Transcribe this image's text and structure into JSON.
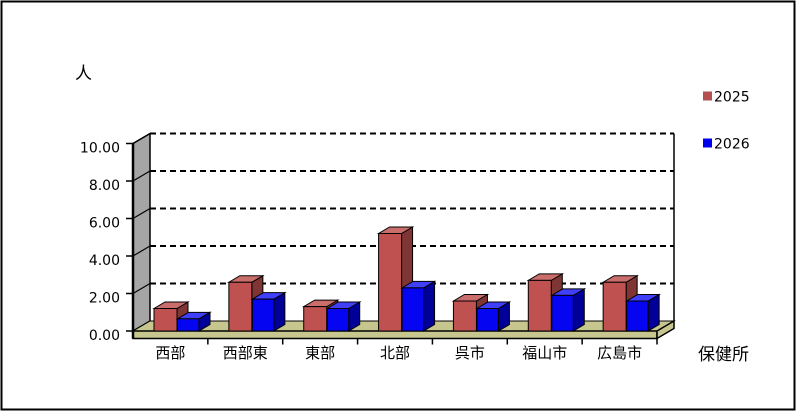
{
  "chart_title": "",
  "frame": {
    "background": "#ffffff",
    "border_color": "#000000"
  },
  "chart_data": {
    "type": "bar",
    "style": "3d-column",
    "title": "",
    "xlabel": "保健所",
    "ylabel": "人",
    "categories": [
      "西部",
      "西部東",
      "東部",
      "北部",
      "呉市",
      "福山市",
      "広島市"
    ],
    "series": [
      {
        "name": "2025",
        "values": [
          1.2,
          2.6,
          1.3,
          5.2,
          1.6,
          2.7,
          2.6
        ],
        "color_front": "#bf5150",
        "color_top": "#ca6e6b",
        "color_side": "#7f3533",
        "legend_color": "#b35050"
      },
      {
        "name": "2026",
        "values": [
          0.65,
          1.7,
          1.2,
          2.3,
          1.2,
          1.9,
          1.6
        ],
        "color_front": "#0505f2",
        "color_top": "#4040fa",
        "color_side": "#000099",
        "legend_color": "#0000f0"
      }
    ],
    "ylim": [
      0,
      10
    ],
    "y_tick_step": 2,
    "y_tick_labels": [
      "0.00",
      "2.00",
      "4.00",
      "6.00",
      "8.00",
      "10.00"
    ],
    "grid": true,
    "gridline_style": "dashed",
    "legend_position": "right",
    "wall_color": "#a5a5a5",
    "floor_color": "#c6c68e",
    "back_wall_color": "#ffffff"
  }
}
